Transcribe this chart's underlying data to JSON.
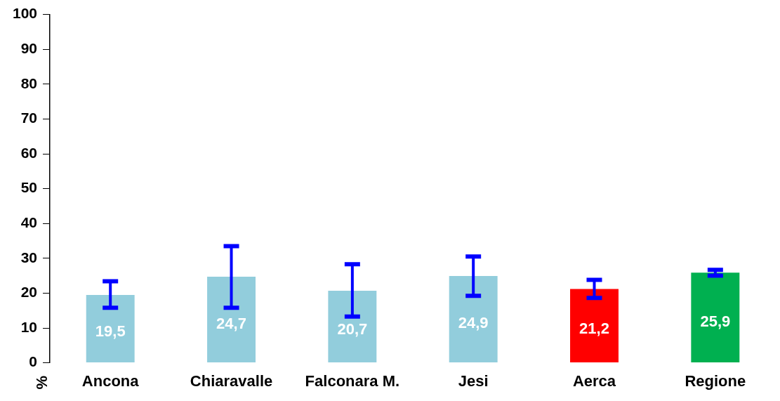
{
  "chart_data": {
    "type": "bar",
    "ylabel": "%",
    "categories": [
      "Ancona",
      "Chiaravalle",
      "Falconara M.",
      "Jesi",
      "Aerca",
      "Regione"
    ],
    "values": [
      19.5,
      24.7,
      20.7,
      24.9,
      21.2,
      25.9
    ],
    "colors": [
      "#92cddc",
      "#92cddc",
      "#92cddc",
      "#92cddc",
      "#ff0000",
      "#00b050"
    ],
    "errors": [
      [
        15.8,
        23.4
      ],
      [
        15.8,
        33.5
      ],
      [
        13.3,
        28.3
      ],
      [
        19.2,
        30.5
      ],
      [
        18.6,
        23.8
      ],
      [
        25.0,
        26.7
      ]
    ],
    "value_labels": [
      "19,5",
      "24,7",
      "20,7",
      "24,9",
      "21,2",
      "25,9"
    ],
    "ylim": [
      0,
      100
    ],
    "yticks": [
      0,
      10,
      20,
      30,
      40,
      50,
      60,
      70,
      80,
      90,
      100
    ],
    "grid": false,
    "legend": false
  }
}
